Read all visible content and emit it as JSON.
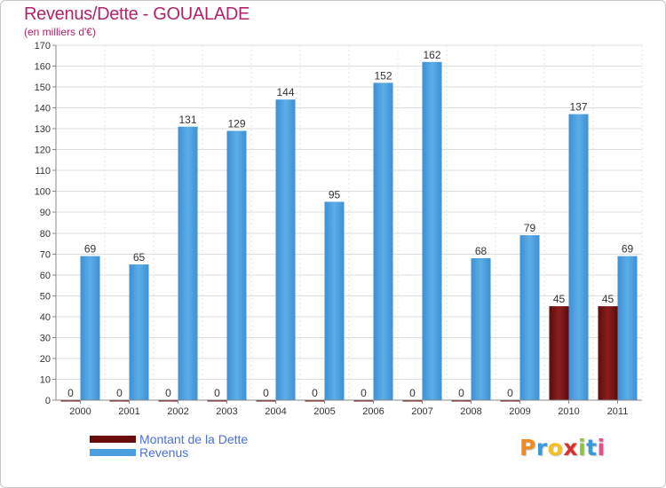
{
  "title": "Revenus/Dette - GOUALADE",
  "subtitle": "(en milliers d'€)",
  "legend": [
    {
      "label": "Montant de la Dette",
      "color": "#6b0d0d"
    },
    {
      "label": "Revenus",
      "color": "#4a9fe0"
    }
  ],
  "logo": {
    "text": "Proxiti",
    "letters": [
      "P",
      "r",
      "o",
      "x",
      "i",
      "t",
      "i"
    ],
    "colors": [
      "#f28a1e",
      "#3a9ad9",
      "#f2c31e",
      "#d9302e",
      "#8cc63f",
      "#3a9ad9",
      "#e94e8a"
    ]
  },
  "colors": {
    "title": "#b0236b",
    "dette_bar": "#6b0d0d",
    "revenus_bar": "#4a9fe0",
    "legend_text": "#4a6fe0"
  },
  "chart_data": {
    "type": "bar",
    "categories": [
      "2000",
      "2001",
      "2002",
      "2003",
      "2004",
      "2005",
      "2006",
      "2007",
      "2008",
      "2009",
      "2010",
      "2011"
    ],
    "series": [
      {
        "name": "Montant de la Dette",
        "values": [
          0,
          0,
          0,
          0,
          0,
          0,
          0,
          0,
          0,
          0,
          45,
          45
        ]
      },
      {
        "name": "Revenus",
        "values": [
          69,
          65,
          131,
          129,
          144,
          95,
          152,
          162,
          68,
          79,
          137,
          69
        ]
      }
    ],
    "ylim": [
      0,
      170
    ],
    "yticks": [
      0,
      10,
      20,
      30,
      40,
      50,
      60,
      70,
      80,
      90,
      100,
      110,
      120,
      130,
      140,
      150,
      160,
      170
    ],
    "grid": true,
    "legend_position": "bottom-left",
    "data_labels": true
  }
}
